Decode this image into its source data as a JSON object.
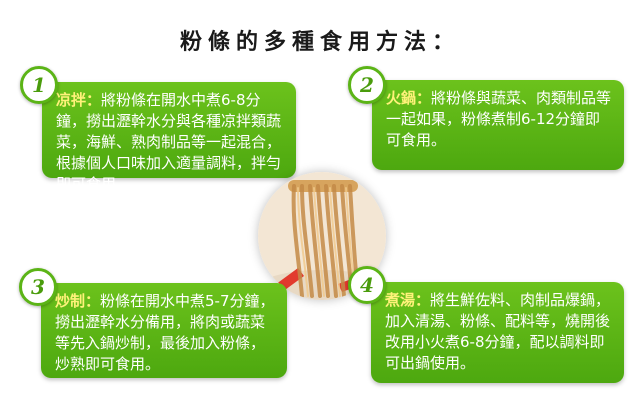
{
  "title": "粉條的多種食用方法：",
  "methods": [
    {
      "number": "1",
      "heading": "凉拌：",
      "body": "將粉條在開水中煮6-8分鐘，撈出瀝幹水分與各種凉拌類蔬菜，海鮮、熟肉制品等一起混合，根據個人口味加入適量調料，拌勻即可食用。"
    },
    {
      "number": "2",
      "heading": "火鍋：",
      "body": "將粉條與蔬菜、肉類制品等一起如果，粉條煮制6-12分鐘即可食用。"
    },
    {
      "number": "3",
      "heading": "炒制：",
      "body": "粉條在開水中煮5-7分鐘，撈出瀝幹水分備用，將肉或蔬菜等先入鍋炒制，最後加入粉條，炒熟即可食用。"
    },
    {
      "number": "4",
      "heading": "煮湯：",
      "body": "將生鮮佐料、肉制品爆鍋，加入清湯、粉條、配料等，燒開後改用小火煮6-8分鐘，配以調料即可出鍋使用。"
    }
  ]
}
